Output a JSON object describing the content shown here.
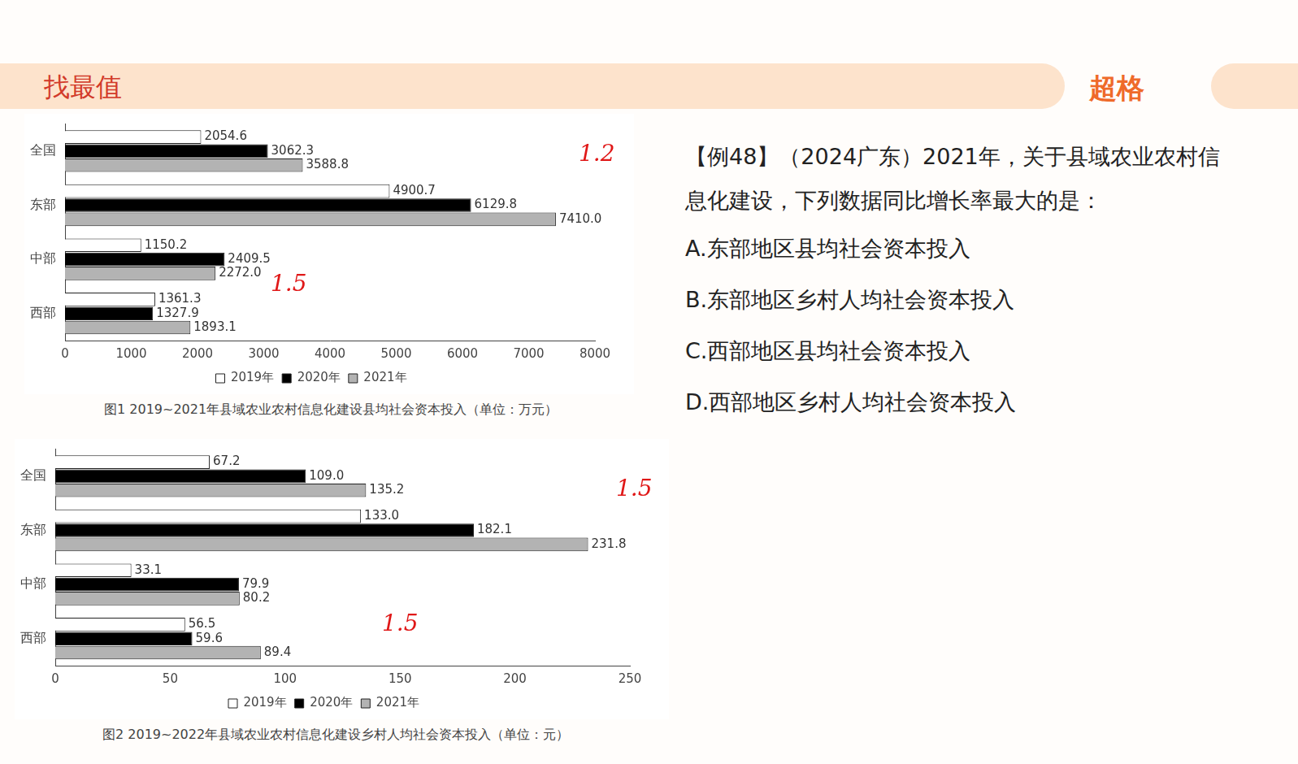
{
  "header": {
    "title": "找最值",
    "logo": "超格"
  },
  "question": {
    "stem": "【例48】（2024广东）2021年，关于县域农业农村信息化建设，下列数据同比增长率最大的是：",
    "options": [
      "A.东部地区县均社会资本投入",
      "B.东部地区乡村人均社会资本投入",
      "C.西部地区县均社会资本投入",
      "D.西部地区乡村人均社会资本投入"
    ]
  },
  "annotations": [
    "1.2",
    "1.5",
    "1.5",
    "1.5"
  ],
  "chart_data": [
    {
      "type": "bar",
      "orientation": "horizontal",
      "title": "图1  2019~2021年县域农业农村信息化建设县均社会资本投入（单位：万元）",
      "categories": [
        "全国",
        "东部",
        "中部",
        "西部"
      ],
      "series": [
        {
          "name": "2019年",
          "color": "#ffffff",
          "values": [
            2054.6,
            4900.7,
            1150.2,
            1361.3
          ],
          "value_labels": [
            "2054.6",
            "4900.7",
            "1150.2",
            "1361.3"
          ]
        },
        {
          "name": "2020年",
          "color": "#000000",
          "values": [
            3062.3,
            6129.8,
            2409.5,
            1327.9
          ],
          "value_labels": [
            "3062.3",
            "6129.8",
            "2409.5",
            "1327.9"
          ]
        },
        {
          "name": "2021年",
          "color": "#b3b3b3",
          "values": [
            3588.8,
            7410.0,
            2272.0,
            1893.1
          ],
          "value_labels": [
            "3588.8",
            "7410.0",
            "2272.0",
            "1893.1"
          ]
        }
      ],
      "xlim": [
        0,
        8000
      ],
      "xticks": [
        0,
        1000,
        2000,
        3000,
        4000,
        5000,
        6000,
        7000,
        8000
      ],
      "grid": false,
      "legend": "bottom",
      "data_labels": true
    },
    {
      "type": "bar",
      "orientation": "horizontal",
      "title": "图2  2019~2022年县域农业农村信息化建设乡村人均社会资本投入（单位：元）",
      "categories": [
        "全国",
        "东部",
        "中部",
        "西部"
      ],
      "series": [
        {
          "name": "2019年",
          "color": "#ffffff",
          "values": [
            67.2,
            133.0,
            33.1,
            56.5
          ],
          "value_labels": [
            "67.2",
            "133.0",
            "33.1",
            "56.5"
          ]
        },
        {
          "name": "2020年",
          "color": "#000000",
          "values": [
            109.0,
            182.1,
            79.9,
            59.6
          ],
          "value_labels": [
            "109.0",
            "182.1",
            "79.9",
            "59.6"
          ]
        },
        {
          "name": "2021年",
          "color": "#b3b3b3",
          "values": [
            135.2,
            231.8,
            80.2,
            89.4
          ],
          "value_labels": [
            "135.2",
            "231.8",
            "80.2",
            "89.4"
          ]
        }
      ],
      "xlim": [
        0,
        250
      ],
      "xticks": [
        0,
        50,
        100,
        150,
        200,
        250
      ],
      "grid": false,
      "legend": "bottom",
      "data_labels": true
    }
  ]
}
